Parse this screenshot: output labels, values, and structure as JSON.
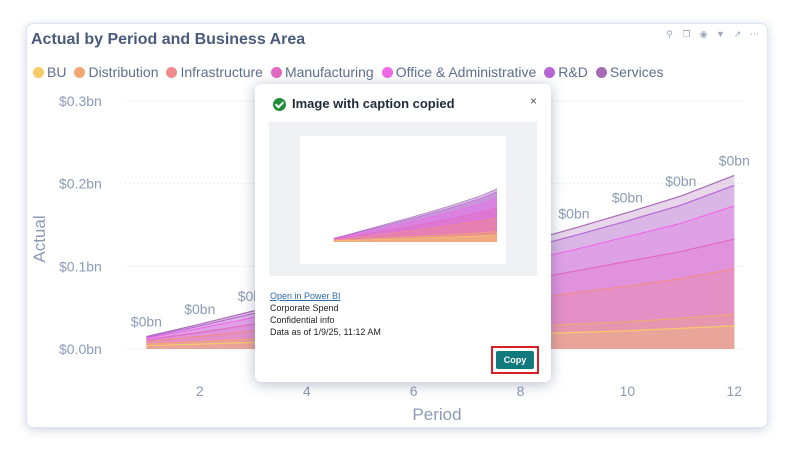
{
  "visual": {
    "title": "Actual by Period and Business Area",
    "header_icons": [
      "pin-icon",
      "copy-icon",
      "bell-icon",
      "filter-icon",
      "expand-icon",
      "more-icon"
    ]
  },
  "chart_data": {
    "type": "area",
    "stacked": true,
    "xlabel": "Period",
    "ylabel": "Actual",
    "x_ticks": [
      2,
      4,
      6,
      8,
      10,
      12
    ],
    "y_ticks": [
      "$0.0bn",
      "$0.1bn",
      "$0.2bn",
      "$0.3bn"
    ],
    "y_range": [
      0,
      0.3
    ],
    "x_range": [
      0.6,
      12.2
    ],
    "x": [
      1,
      2,
      3,
      4,
      5,
      6,
      7,
      8,
      9,
      10,
      11,
      12
    ],
    "series": [
      {
        "name": "BU",
        "color": "#f6cc66",
        "values": [
          0.004,
          0.006,
          0.008,
          0.01,
          0.012,
          0.014,
          0.016,
          0.018,
          0.02,
          0.022,
          0.025,
          0.028
        ]
      },
      {
        "name": "Distribution",
        "color": "#f2a772",
        "values": [
          0.002,
          0.003,
          0.004,
          0.005,
          0.006,
          0.007,
          0.008,
          0.009,
          0.01,
          0.011,
          0.012,
          0.014
        ]
      },
      {
        "name": "Infrastructure",
        "color": "#ef8c8c",
        "values": [
          0.003,
          0.006,
          0.01,
          0.014,
          0.018,
          0.022,
          0.027,
          0.032,
          0.038,
          0.043,
          0.048,
          0.055
        ]
      },
      {
        "name": "Manufacturing",
        "color": "#e26ac4",
        "values": [
          0.002,
          0.005,
          0.008,
          0.011,
          0.014,
          0.017,
          0.02,
          0.023,
          0.026,
          0.03,
          0.033,
          0.036
        ]
      },
      {
        "name": "Office & Administrative",
        "color": "#f06be8",
        "values": [
          0.002,
          0.005,
          0.008,
          0.011,
          0.014,
          0.017,
          0.02,
          0.023,
          0.026,
          0.03,
          0.034,
          0.04
        ]
      },
      {
        "name": "R&D",
        "color": "#b866d6",
        "values": [
          0.001,
          0.003,
          0.005,
          0.007,
          0.009,
          0.011,
          0.013,
          0.015,
          0.017,
          0.019,
          0.022,
          0.025
        ]
      },
      {
        "name": "Services",
        "color": "#a86ab4",
        "values": [
          0.001,
          0.002,
          0.003,
          0.004,
          0.005,
          0.006,
          0.007,
          0.008,
          0.009,
          0.01,
          0.011,
          0.012
        ]
      }
    ],
    "data_labels": [
      {
        "x": 1,
        "text": "$0bn"
      },
      {
        "x": 2,
        "text": "$0bn"
      },
      {
        "x": 3,
        "text": "$0bn"
      },
      {
        "x": 9,
        "text": "$0bn"
      },
      {
        "x": 10,
        "text": "$0bn"
      },
      {
        "x": 11,
        "text": "$0bn"
      },
      {
        "x": 12,
        "text": "$0bn"
      }
    ]
  },
  "dialog": {
    "title": "Image with caption copied",
    "close_label": "×",
    "link_text": "Open in Power BI",
    "caption_lines": [
      "Corporate Spend",
      "Confidential info",
      "Data as of 1/9/25, 11:12 AM"
    ],
    "copy_label": "Copy"
  },
  "colors": {
    "accent_button": "#127a7c",
    "highlight": "#d91f26",
    "success": "#1f8f3a"
  }
}
